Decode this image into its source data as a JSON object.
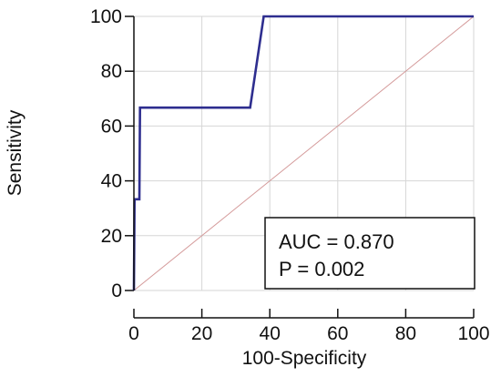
{
  "chart_data": {
    "type": "line",
    "title": "",
    "xlabel": "100-Specificity",
    "ylabel": "Sensitivity",
    "xlim": [
      0,
      100
    ],
    "ylim": [
      0,
      100
    ],
    "x_ticks": [
      "0",
      "20",
      "40",
      "60",
      "80",
      "100"
    ],
    "y_ticks": [
      "0",
      "20",
      "40",
      "60",
      "80",
      "100"
    ],
    "grid": true,
    "series": [
      {
        "role": "roc-curve",
        "color": "#2e2e8f",
        "x": [
          0,
          0,
          0.2,
          1.6,
          1.8,
          2.6,
          34.2,
          38.2,
          100
        ],
        "y": [
          0,
          0,
          33.3,
          33.3,
          66.7,
          66.7,
          66.7,
          100,
          100
        ]
      },
      {
        "role": "reference-diagonal",
        "color": "#d49a9a",
        "x": [
          0,
          100
        ],
        "y": [
          0,
          100
        ]
      }
    ],
    "annotation": {
      "placement": "bottom-right",
      "lines": [
        "AUC = 0.870",
        "P = 0.002"
      ]
    }
  }
}
